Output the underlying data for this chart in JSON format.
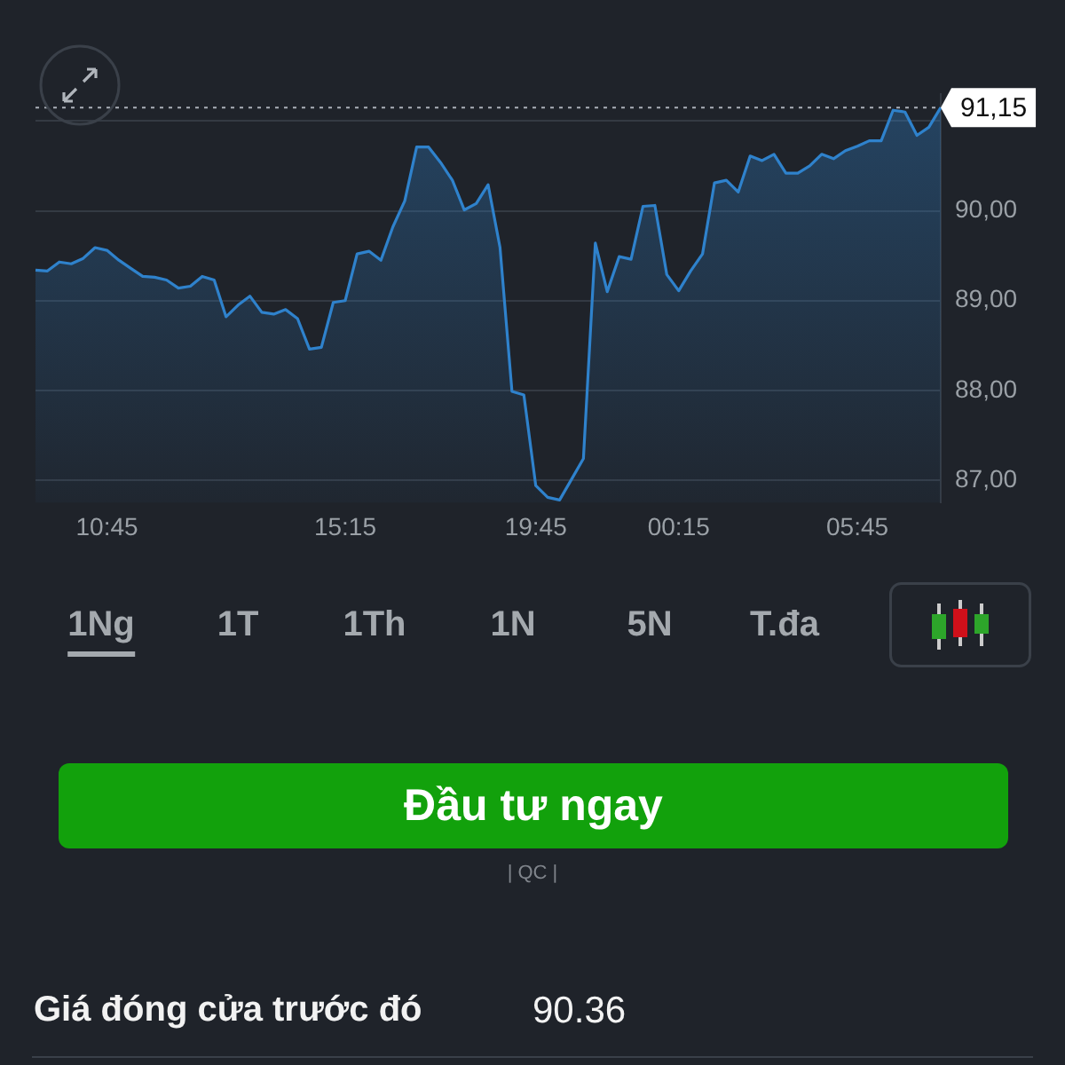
{
  "chart_data": {
    "type": "area",
    "categories": [
      null,
      null,
      null,
      null,
      null,
      null,
      "10:45",
      null,
      null,
      null,
      null,
      null,
      null,
      null,
      null,
      null,
      null,
      null,
      null,
      null,
      null,
      null,
      null,
      null,
      null,
      null,
      "15:15",
      null,
      null,
      null,
      null,
      null,
      null,
      null,
      null,
      null,
      null,
      null,
      null,
      null,
      null,
      null,
      "19:45",
      null,
      null,
      null,
      null,
      null,
      null,
      null,
      null,
      null,
      null,
      null,
      "00:15",
      null,
      null,
      null,
      null,
      null,
      null,
      null,
      null,
      null,
      null,
      null,
      null,
      null,
      null,
      "05:45",
      null,
      null,
      null,
      null,
      null,
      null,
      null
    ],
    "values": [
      89.34,
      89.33,
      89.43,
      89.41,
      89.47,
      89.59,
      89.56,
      89.45,
      89.36,
      89.27,
      89.26,
      89.23,
      89.14,
      89.16,
      89.27,
      89.23,
      88.82,
      88.95,
      89.05,
      88.87,
      88.85,
      88.9,
      88.8,
      88.46,
      88.48,
      88.98,
      89.0,
      89.52,
      89.55,
      89.45,
      89.82,
      90.11,
      90.71,
      90.71,
      90.54,
      90.34,
      90.01,
      90.08,
      90.29,
      89.59,
      87.99,
      87.95,
      86.94,
      86.81,
      86.78,
      87.01,
      87.24,
      89.64,
      89.1,
      89.49,
      89.46,
      90.05,
      90.06,
      89.29,
      89.11,
      89.33,
      89.52,
      90.31,
      90.34,
      90.21,
      90.61,
      90.56,
      90.63,
      90.42,
      90.42,
      90.5,
      90.63,
      90.58,
      90.67,
      90.72,
      90.78,
      90.78,
      91.12,
      91.1,
      90.84,
      90.93,
      91.15
    ],
    "color": "#2f82cc",
    "ylim": [
      86.75,
      91.3
    ],
    "yticks": [
      {
        "value": 87,
        "label": "87,00"
      },
      {
        "value": 88,
        "label": "88,00"
      },
      {
        "value": 89,
        "label": "89,00"
      },
      {
        "value": 90,
        "label": "90,00"
      },
      {
        "value": 91,
        "label": null
      }
    ],
    "grid": "y",
    "marker": "none",
    "ref_lines": [
      {
        "axis": "y",
        "value": 91.15,
        "label": "91,15",
        "line_style": "dotted",
        "color": "#aab0b8"
      }
    ],
    "annotations": [
      "1Ng",
      "1T",
      "1Th",
      "1N",
      "5N",
      "T.đa",
      "Đầu tư ngay",
      "| QC |",
      "Giá đóng cửa trước đó",
      "90.36"
    ]
  }
}
